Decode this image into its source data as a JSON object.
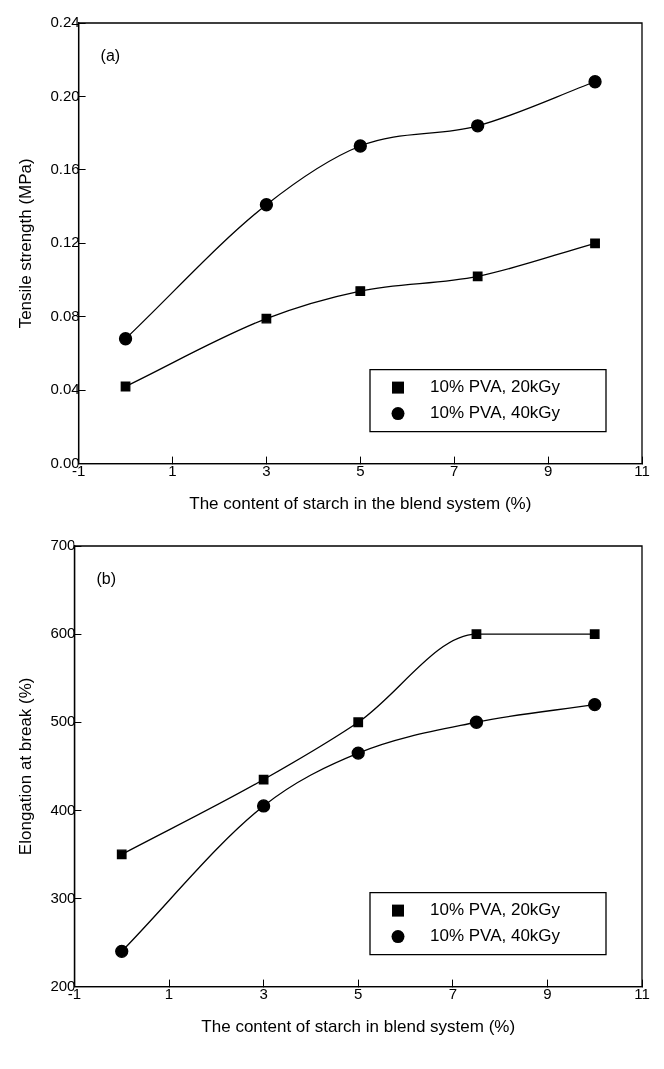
{
  "chart_data": [
    {
      "type": "line",
      "xlabel": "The content of starch in the blend system (%)",
      "ylabel": "Tensile strength (MPa)",
      "annotations": [
        "(a)"
      ],
      "x": [
        0,
        3,
        5,
        7.5,
        10
      ],
      "xlim": [
        -1,
        11
      ],
      "xticks": [
        -1,
        1,
        3,
        5,
        7,
        9,
        11
      ],
      "ylim": [
        0,
        0.24
      ],
      "yticks": [
        {
          "value": 0,
          "label": "0.00"
        },
        {
          "value": 0.04,
          "label": "0.04"
        },
        {
          "value": 0.08,
          "label": "0.08"
        },
        {
          "value": 0.12,
          "label": "0.12"
        },
        {
          "value": 0.16,
          "label": "0.16"
        },
        {
          "value": 0.2,
          "label": "0.20"
        },
        {
          "value": 0.24,
          "label": "0.24"
        }
      ],
      "grid": false,
      "legend": "bottom right",
      "series": [
        {
          "name": "10% PVA, 20kGy",
          "color": "#000000",
          "marker": "square",
          "values": [
            0.042,
            0.079,
            0.094,
            0.102,
            0.12
          ]
        },
        {
          "name": "10% PVA, 40kGy",
          "color": "#000000",
          "marker": "circle",
          "values": [
            0.068,
            0.141,
            0.173,
            0.184,
            0.208
          ]
        }
      ]
    },
    {
      "type": "line",
      "xlabel": "The content of starch in blend system (%)",
      "ylabel": "Elongation at break (%)",
      "annotations": [
        "(b)"
      ],
      "x": [
        0,
        3,
        5,
        7.5,
        10
      ],
      "xlim": [
        -1,
        11
      ],
      "xticks": [
        -1,
        1,
        3,
        5,
        7,
        9,
        11
      ],
      "ylim": [
        200,
        700
      ],
      "yticks": [
        200,
        300,
        400,
        500,
        600,
        700
      ],
      "grid": false,
      "legend": "bottom right",
      "series": [
        {
          "name": "10% PVA, 20kGy",
          "color": "#000000",
          "marker": "square",
          "values": [
            350,
            435,
            500,
            600,
            600
          ]
        },
        {
          "name": "10% PVA, 40kGy",
          "color": "#000000",
          "marker": "circle",
          "values": [
            240,
            405,
            465,
            500,
            520
          ]
        }
      ]
    }
  ]
}
